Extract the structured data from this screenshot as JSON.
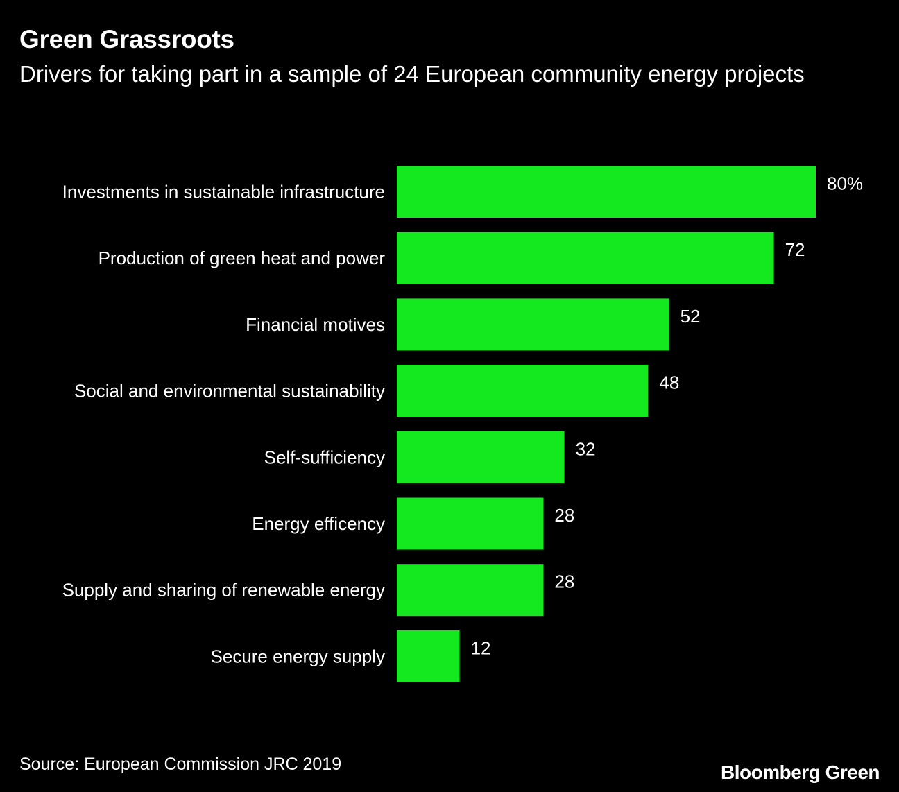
{
  "header": {
    "title": "Green Grassroots",
    "subtitle": "Drivers for taking part in a sample of 24 European community energy projects"
  },
  "footer": {
    "source": "Source: European Commission JRC 2019",
    "brand": "Bloomberg Green"
  },
  "colors": {
    "background": "#000000",
    "bar": "#14e81e",
    "text": "#ffffff"
  },
  "chart_data": {
    "type": "bar",
    "orientation": "horizontal",
    "title": "Green Grassroots",
    "subtitle": "Drivers for taking part in a sample of 24 European community energy projects",
    "xlabel": "",
    "ylabel": "",
    "unit": "%",
    "grid": false,
    "legend": "none",
    "xlim": [
      0,
      80
    ],
    "categories": [
      "Investments in sustainable infrastructure",
      "Production of green heat and power",
      "Financial motives",
      "Social and environmental sustainability",
      "Self-sufficiency",
      "Energy efficency",
      "Supply and sharing of renewable energy",
      "Secure energy supply"
    ],
    "values": [
      80,
      72,
      52,
      48,
      32,
      28,
      28,
      12
    ],
    "value_labels": [
      "80%",
      "72",
      "52",
      "48",
      "32",
      "28",
      "28",
      "12"
    ]
  }
}
